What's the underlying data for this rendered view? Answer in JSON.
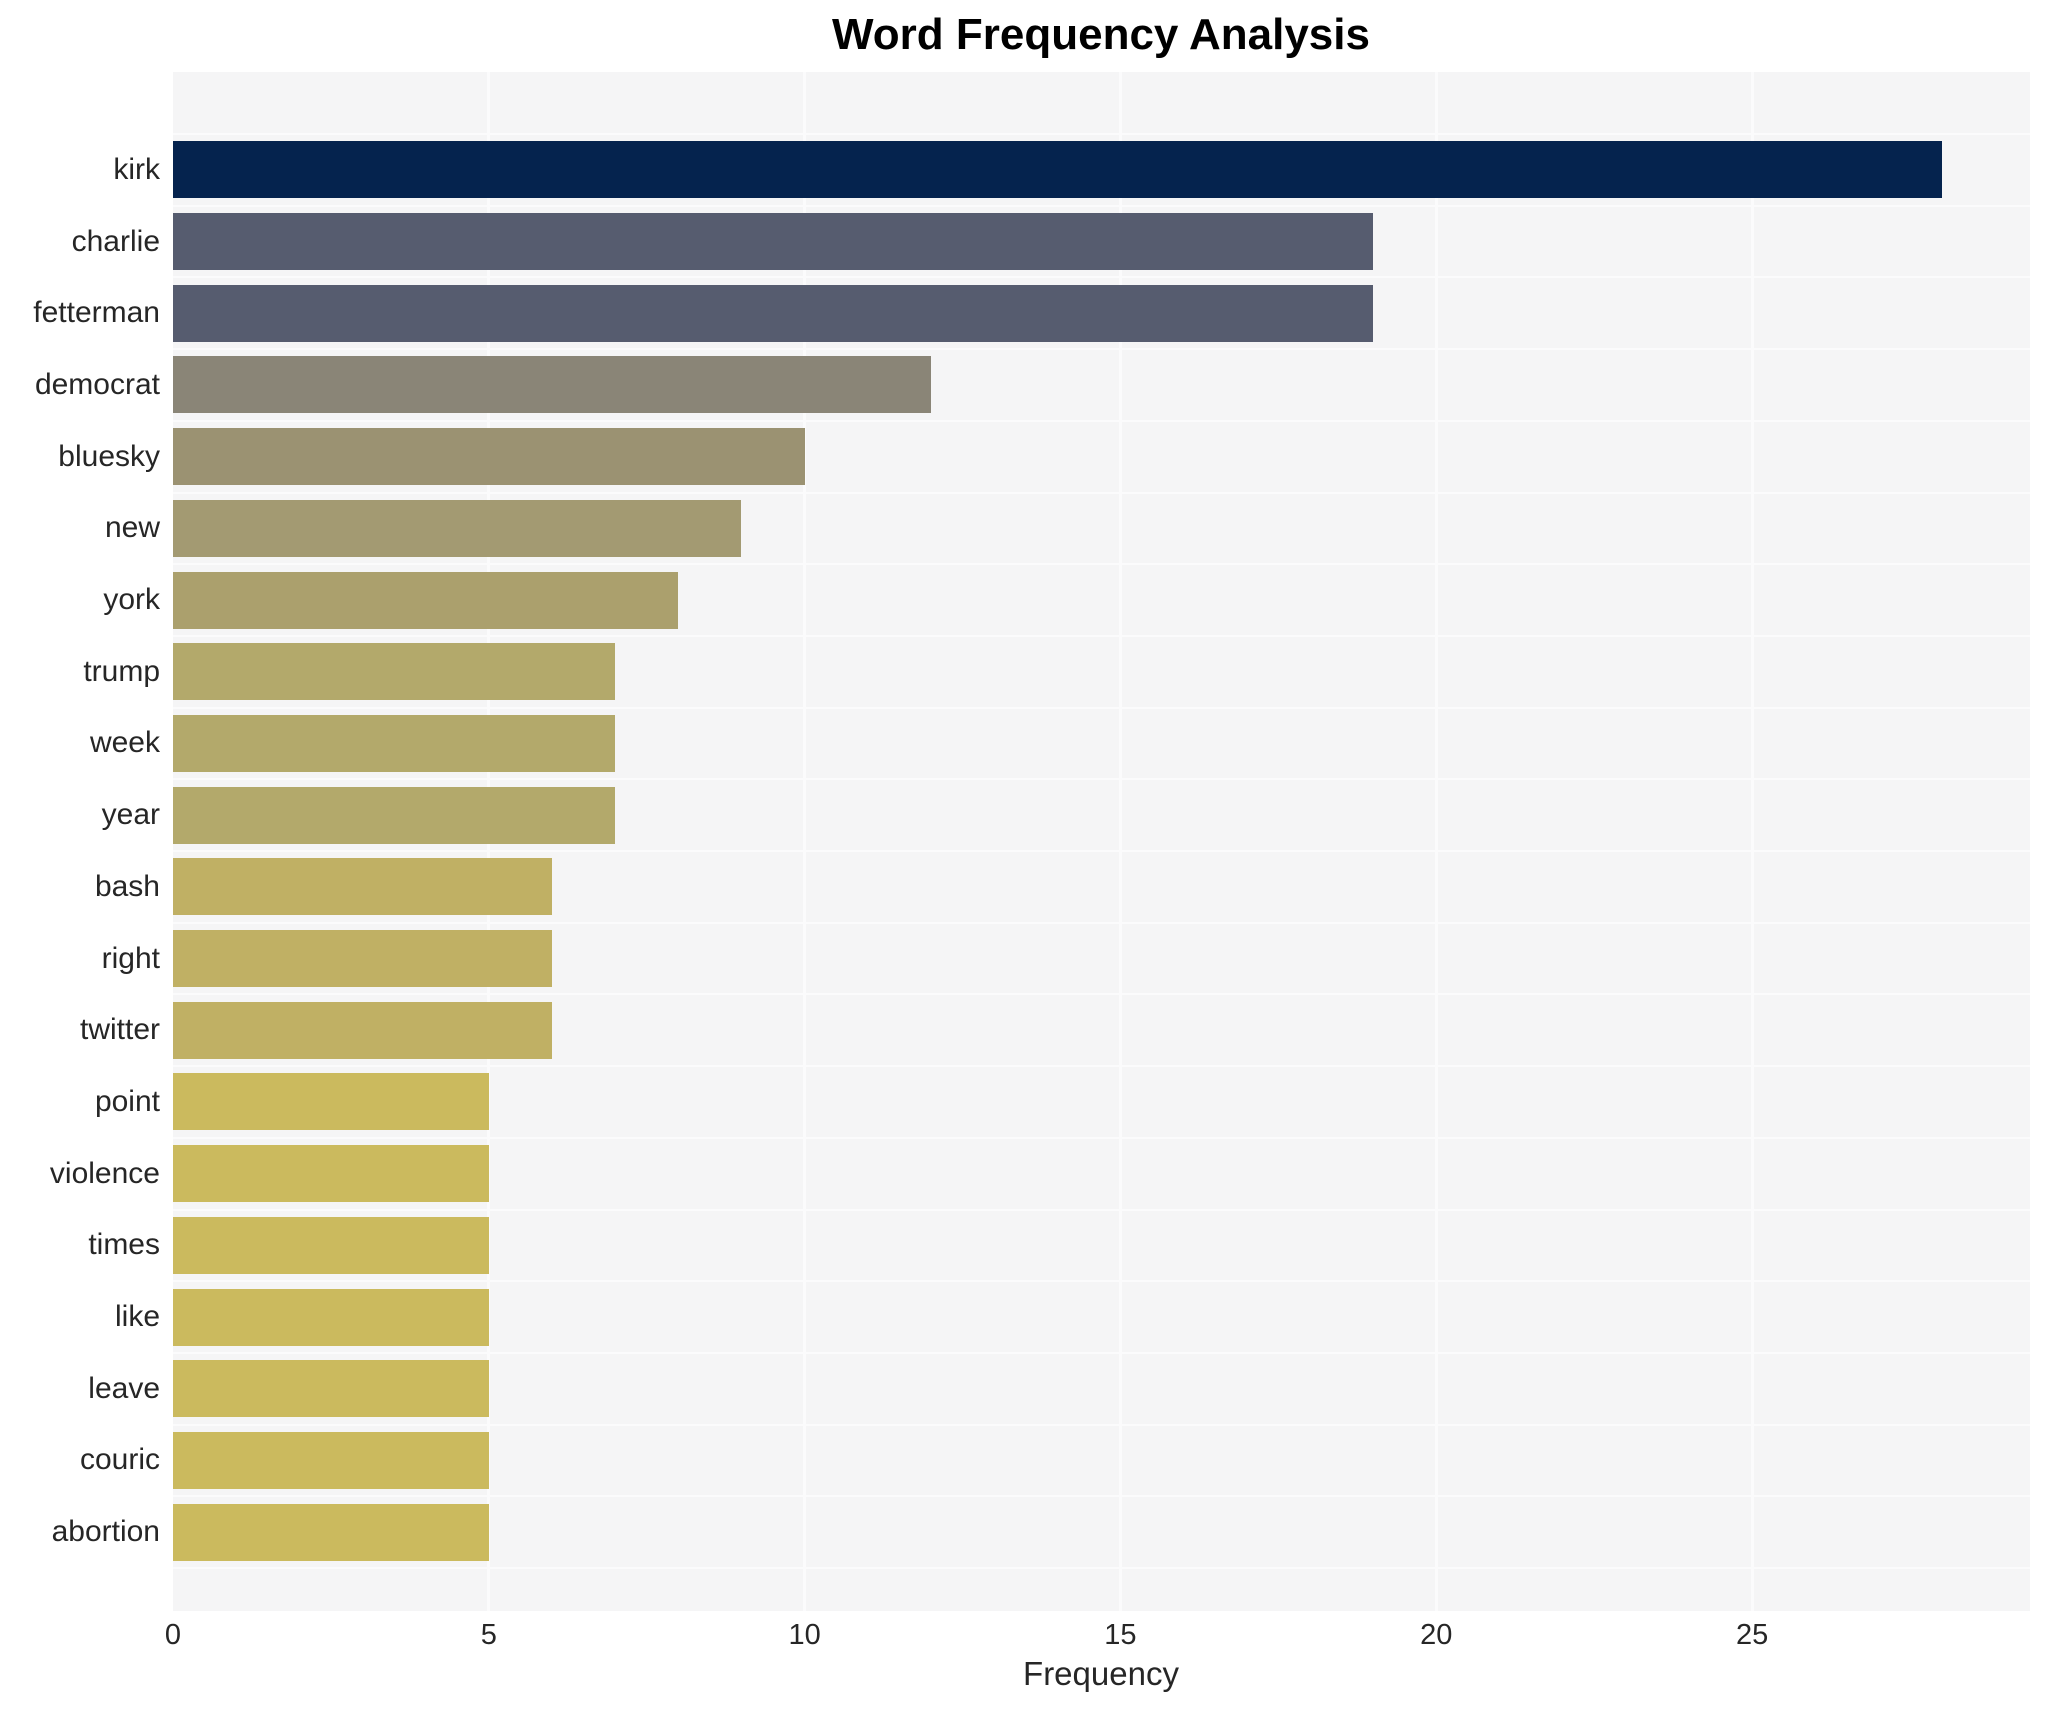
{
  "chart_data": {
    "type": "bar",
    "orientation": "horizontal",
    "title": "Word Frequency Analysis",
    "xlabel": "Frequency",
    "ylabel": "",
    "xlim": [
      0,
      29.4
    ],
    "x_ticks": [
      0,
      5,
      10,
      15,
      20,
      25
    ],
    "x_tick_labels": [
      "0",
      "5",
      "10",
      "15",
      "20",
      "25"
    ],
    "grid": true,
    "legend": false,
    "categories": [
      "kirk",
      "charlie",
      "fetterman",
      "democrat",
      "bluesky",
      "new",
      "york",
      "trump",
      "week",
      "year",
      "bash",
      "right",
      "twitter",
      "point",
      "violence",
      "times",
      "like",
      "leave",
      "couric",
      "abortion"
    ],
    "values": [
      28,
      19,
      19,
      12,
      10,
      9,
      8,
      7,
      7,
      7,
      6,
      6,
      6,
      5,
      5,
      5,
      5,
      5,
      5,
      5
    ],
    "bar_colors": [
      "#05234e",
      "#565c6f",
      "#565c6f",
      "#8a8577",
      "#9b9272",
      "#a39a72",
      "#aba06d",
      "#b3a96b",
      "#b3a96b",
      "#b3a96b",
      "#c0b064",
      "#c0b064",
      "#c0b064",
      "#cbba5e",
      "#cbba5e",
      "#cbba5e",
      "#cbba5e",
      "#cbba5e",
      "#cbba5e",
      "#cbba5e"
    ]
  },
  "colors": {
    "figure_bg": "#ffffff",
    "plot_bg": "#f5f5f6",
    "gridline": "#fbfbfc",
    "tick_text": "#262626",
    "title_text": "#000000"
  }
}
